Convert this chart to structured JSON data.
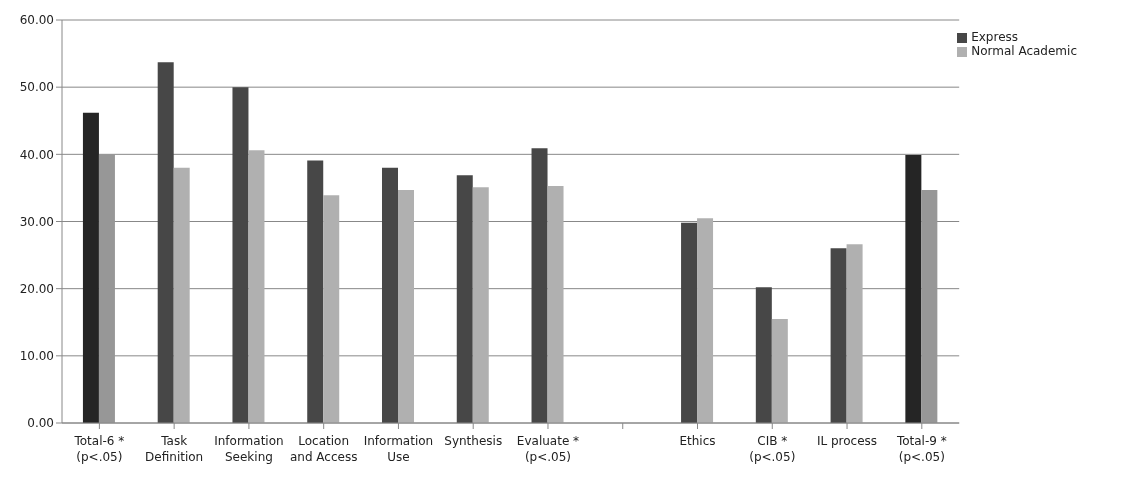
{
  "chart_data": {
    "type": "bar",
    "categories": [
      "Total-6 *\n(p<.05)",
      "Task\nDefinition",
      "Information\nSeeking",
      "Location\nand Access",
      "Information\nUse",
      "Synthesis",
      "Evaluate *\n(p<.05)",
      null,
      "Ethics",
      "CIB *\n(p<.05)",
      "IL process",
      "Total-9 *\n(p<.05)"
    ],
    "series": [
      {
        "name": "Express",
        "color": "#474747",
        "colors": [
          "#252525",
          "#474747",
          "#474747",
          "#474747",
          "#474747",
          "#474747",
          "#474747",
          "#474747",
          "#474747",
          "#474747",
          "#474747",
          "#252525"
        ],
        "values": [
          46.2,
          53.7,
          50.0,
          39.1,
          38.0,
          36.9,
          40.9,
          null,
          29.8,
          20.2,
          26.0,
          39.9
        ]
      },
      {
        "name": "Normal Academic",
        "color": "#b0b0b0",
        "colors": [
          "#979797",
          "#b0b0b0",
          "#b0b0b0",
          "#b0b0b0",
          "#b0b0b0",
          "#b0b0b0",
          "#b0b0b0",
          "#b0b0b0",
          "#b0b0b0",
          "#b0b0b0",
          "#b0b0b0",
          "#979797"
        ],
        "values": [
          40.0,
          38.0,
          40.6,
          33.9,
          34.7,
          35.1,
          35.3,
          null,
          30.5,
          15.5,
          26.6,
          34.7
        ]
      }
    ],
    "ylim": [
      0,
      60
    ],
    "yticks": [
      {
        "value": 0,
        "label": "0.00"
      },
      {
        "value": 10,
        "label": "10.00"
      },
      {
        "value": 20,
        "label": "20.00"
      },
      {
        "value": 30,
        "label": "30.00"
      },
      {
        "value": 40,
        "label": "40.00"
      },
      {
        "value": 50,
        "label": "50.00"
      },
      {
        "value": 60,
        "label": "60.00"
      }
    ],
    "grid": "y",
    "legend": "top right"
  }
}
